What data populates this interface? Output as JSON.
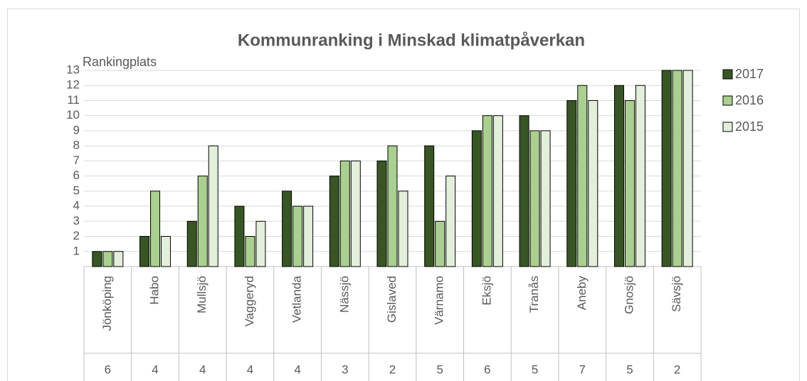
{
  "chart_data": {
    "type": "bar",
    "title": "Kommunranking i Minskad klimatpåverkan",
    "y_label": "Rankingplats",
    "categories": [
      "Jönköping",
      "Habo",
      "Mullsjö",
      "Vaggeryd",
      "Vetlanda",
      "Nässjö",
      "Gislaved",
      "Värnamo",
      "Eksjö",
      "Tranås",
      "Aneby",
      "Gnosjö",
      "Sävsjö"
    ],
    "category_counts": [
      6,
      4,
      4,
      4,
      4,
      3,
      2,
      5,
      6,
      5,
      7,
      5,
      2
    ],
    "series": [
      {
        "name": "2017",
        "color": "#375623",
        "values": [
          1,
          2,
          3,
          4,
          5,
          6,
          7,
          8,
          9,
          10,
          11,
          12,
          13
        ]
      },
      {
        "name": "2016",
        "color": "#a9d08e",
        "values": [
          1,
          5,
          6,
          2,
          4,
          7,
          8,
          3,
          10,
          9,
          12,
          11,
          13
        ]
      },
      {
        "name": "2015",
        "color": "#e2efda",
        "values": [
          1,
          2,
          8,
          3,
          4,
          7,
          5,
          6,
          10,
          9,
          11,
          12,
          13
        ]
      }
    ],
    "ylim": [
      0,
      13
    ],
    "yticks": [
      1,
      2,
      3,
      4,
      5,
      6,
      7,
      8,
      9,
      10,
      11,
      12,
      13
    ],
    "grid": true,
    "legend": "right"
  }
}
